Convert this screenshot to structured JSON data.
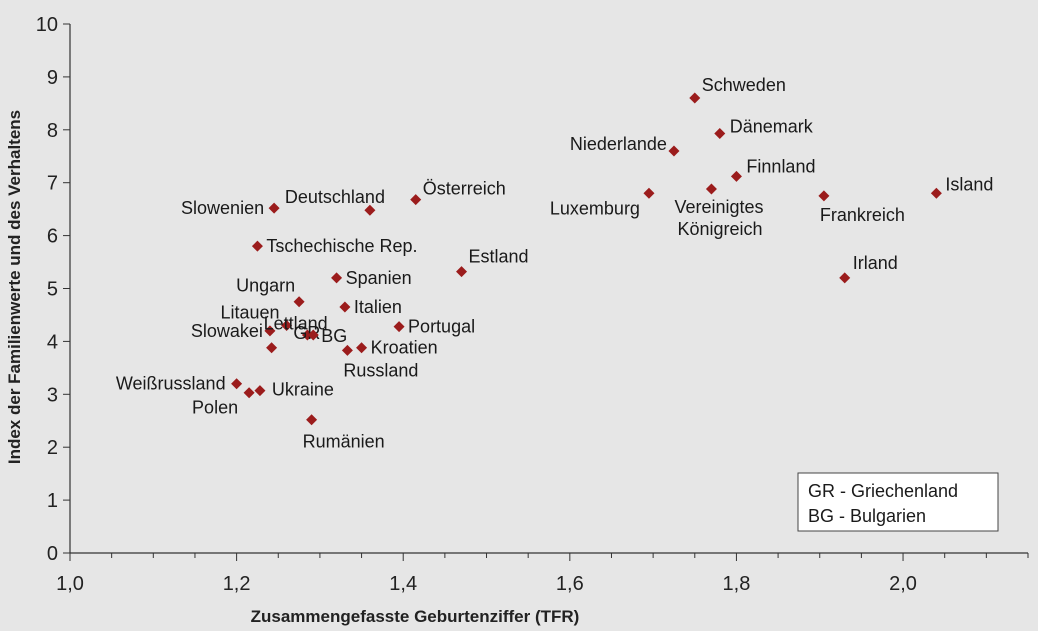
{
  "chart_data": {
    "type": "scatter",
    "xlabel": "Zusammengefasste Geburtenziffer (TFR)",
    "ylabel": "Index der Familienwerte und des Verhaltens",
    "xlim": [
      1.0,
      2.15
    ],
    "ylim": [
      0,
      10
    ],
    "x_ticks": [
      "1,0",
      "1,2",
      "1,4",
      "1,6",
      "1,8",
      "2,0"
    ],
    "y_ticks": [
      "0",
      "1",
      "2",
      "3",
      "4",
      "5",
      "6",
      "7",
      "8",
      "9",
      "10"
    ],
    "marker_color": "#9b1c1c",
    "points": [
      {
        "label": "Schweden",
        "x": 1.75,
        "y": 8.6
      },
      {
        "label": "Dänemark",
        "x": 1.78,
        "y": 7.93
      },
      {
        "label": "Niederlande",
        "x": 1.725,
        "y": 7.6
      },
      {
        "label": "Finnland",
        "x": 1.8,
        "y": 7.12
      },
      {
        "label": "Island",
        "x": 2.04,
        "y": 6.8
      },
      {
        "label": "Luxemburg",
        "x": 1.695,
        "y": 6.8
      },
      {
        "label": "Vereinigtes Königreich",
        "x": 1.77,
        "y": 6.88
      },
      {
        "label": "Frankreich",
        "x": 1.905,
        "y": 6.75
      },
      {
        "label": "Irland",
        "x": 1.93,
        "y": 5.2
      },
      {
        "label": "Slowenien",
        "x": 1.245,
        "y": 6.52
      },
      {
        "label": "Deutschland",
        "x": 1.36,
        "y": 6.48
      },
      {
        "label": "Österreich",
        "x": 1.415,
        "y": 6.68
      },
      {
        "label": "Tschechische Rep.",
        "x": 1.225,
        "y": 5.8
      },
      {
        "label": "Estland",
        "x": 1.47,
        "y": 5.32
      },
      {
        "label": "Spanien",
        "x": 1.32,
        "y": 5.2
      },
      {
        "label": "Ungarn",
        "x": 1.275,
        "y": 4.75
      },
      {
        "label": "Italien",
        "x": 1.33,
        "y": 4.65
      },
      {
        "label": "Litauen",
        "x": 1.26,
        "y": 4.3
      },
      {
        "label": "Slowakei",
        "x": 1.24,
        "y": 4.2
      },
      {
        "label": "GR",
        "x": 1.285,
        "y": 4.12
      },
      {
        "label": "BG",
        "x": 1.292,
        "y": 4.12
      },
      {
        "label": "Portugal",
        "x": 1.395,
        "y": 4.28
      },
      {
        "label": "Lettland",
        "x": 1.242,
        "y": 3.88
      },
      {
        "label": "Russland",
        "x": 1.333,
        "y": 3.83
      },
      {
        "label": "Kroatien",
        "x": 1.35,
        "y": 3.88
      },
      {
        "label": "Weißrussland",
        "x": 1.2,
        "y": 3.2
      },
      {
        "label": "Ukraine",
        "x": 1.228,
        "y": 3.07
      },
      {
        "label": "Polen",
        "x": 1.215,
        "y": 3.03
      },
      {
        "label": "Rumänien",
        "x": 1.29,
        "y": 2.52
      }
    ],
    "legend": {
      "placement": "bottom-right",
      "entries": [
        "GR - Griechenland",
        "BG - Bulgarien"
      ]
    }
  }
}
